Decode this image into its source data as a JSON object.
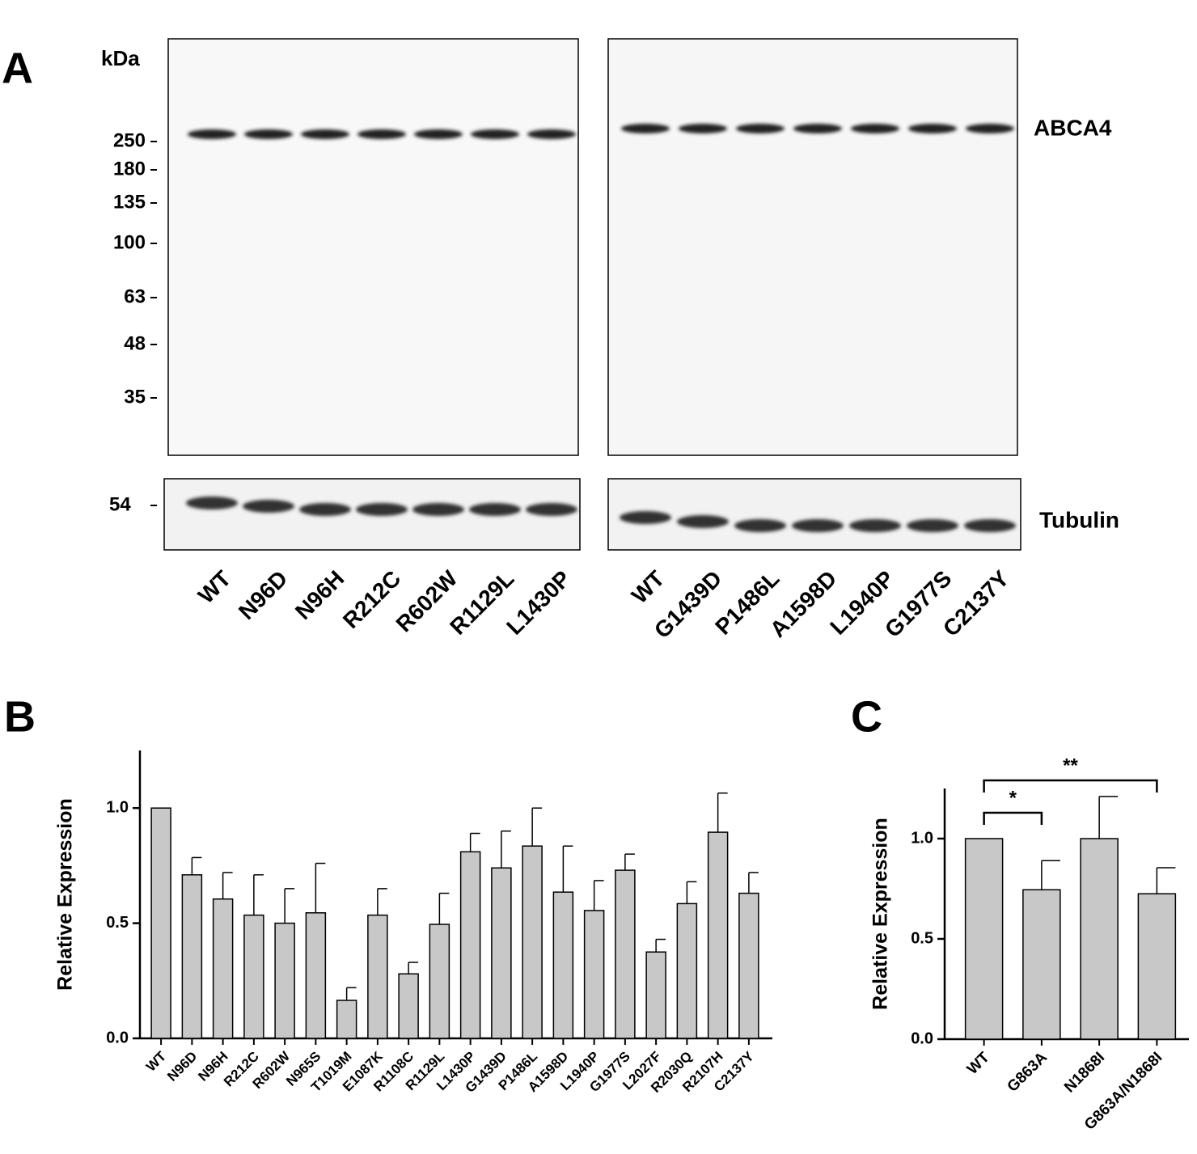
{
  "panel_a": {
    "label": "A",
    "unit": "kDa",
    "markers": [
      250,
      180,
      135,
      100,
      63,
      48,
      35
    ],
    "tubulin_marker": 54,
    "bands": [
      "ABCA4",
      "Tubulin"
    ],
    "lanes": [
      [
        "WT",
        "N96D",
        "N96H",
        "R212C",
        "R602W",
        "R1129L",
        "L1430P"
      ],
      [
        "WT",
        "G1439D",
        "P1486L",
        "A1598D",
        "L1940P",
        "G1977S",
        "C2137Y"
      ]
    ]
  },
  "chart_data": [
    {
      "type": "bar",
      "label": "B",
      "y_label": "Relative Expression",
      "categories": [
        "WT",
        "N96D",
        "N96H",
        "R212C",
        "R602W",
        "N965S",
        "T1019M",
        "E1087K",
        "R1108C",
        "R1129L",
        "L1430P",
        "G1439D",
        "P1486L",
        "A1598D",
        "L1940P",
        "G1977S",
        "L2027F",
        "R2030Q",
        "R2107H",
        "C2137Y"
      ],
      "values": [
        1.0,
        0.71,
        0.605,
        0.535,
        0.5,
        0.545,
        0.165,
        0.535,
        0.28,
        0.495,
        0.81,
        0.74,
        0.835,
        0.635,
        0.555,
        0.73,
        0.375,
        0.585,
        0.895,
        0.63
      ],
      "errors": [
        0,
        0.075,
        0.115,
        0.175,
        0.15,
        0.215,
        0.055,
        0.115,
        0.05,
        0.135,
        0.08,
        0.16,
        0.165,
        0.2,
        0.13,
        0.07,
        0.055,
        0.095,
        0.17,
        0.09
      ],
      "color": "#c8c8c8",
      "ylim": [
        0,
        1.25
      ],
      "yticks": [
        {
          "value": 0,
          "label": "0.0"
        },
        0.5,
        {
          "value": 1,
          "label": "1.0"
        }
      ]
    },
    {
      "type": "bar",
      "label": "C",
      "y_label": "Relative Expression",
      "categories": [
        "WT",
        "G863A",
        "N1868I",
        "G863A/N1868I"
      ],
      "values": [
        1.0,
        0.745,
        1.0,
        0.725
      ],
      "errors": [
        0,
        0.145,
        0.21,
        0.13
      ],
      "color": "#c8c8c8",
      "ylim": [
        0,
        1.25
      ],
      "yticks": [
        {
          "value": 0,
          "label": "0.0"
        },
        0.5,
        {
          "value": 1,
          "label": "1.0"
        }
      ],
      "annotations": [
        "*",
        "**"
      ]
    }
  ]
}
